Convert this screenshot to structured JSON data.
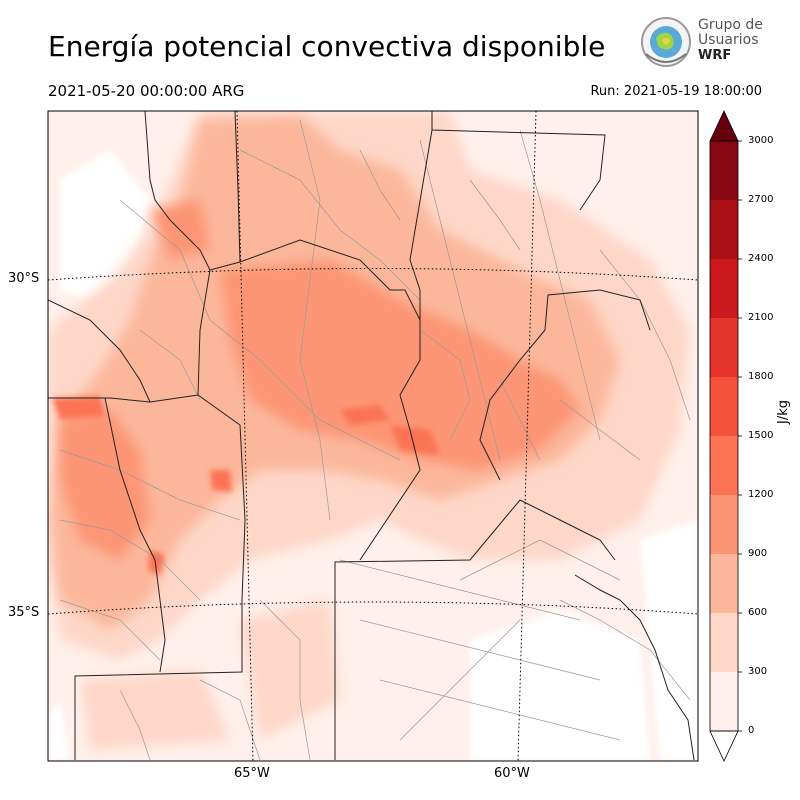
{
  "header": {
    "title": "Energía potencial convectiva disponible",
    "valid_time": "2021-05-20 00:00:00 ARG",
    "run_time": "Run: 2021-05-19 18:00:00"
  },
  "logo": {
    "line1": "Grupo de",
    "line2": "Usuarios",
    "line3": "WRF"
  },
  "map": {
    "lat_labels": [
      "30°S",
      "35°S"
    ],
    "lon_labels": [
      "65°W",
      "60°W"
    ],
    "colors": {
      "land_base": "#fff0eb",
      "province_border": "#222222",
      "department_border": "#9a9a9a",
      "graticule": "#000000"
    }
  },
  "colorbar": {
    "unit": "J/kg",
    "levels": [
      0,
      300,
      600,
      900,
      1200,
      1500,
      1800,
      2100,
      2400,
      2700,
      3000
    ],
    "tick_labels": [
      "0",
      "300",
      "600",
      "900",
      "1200",
      "1500",
      "1800",
      "2100",
      "2400",
      "2700",
      "3000"
    ],
    "bands": [
      "#fff0eb",
      "#fed7c8",
      "#fcb79b",
      "#fc9575",
      "#fb7352",
      "#f4523b",
      "#e5352a",
      "#cb191d",
      "#aa1016",
      "#870812"
    ],
    "over_color": "#67000d",
    "under_color": "#ffffff",
    "extend": "both"
  }
}
